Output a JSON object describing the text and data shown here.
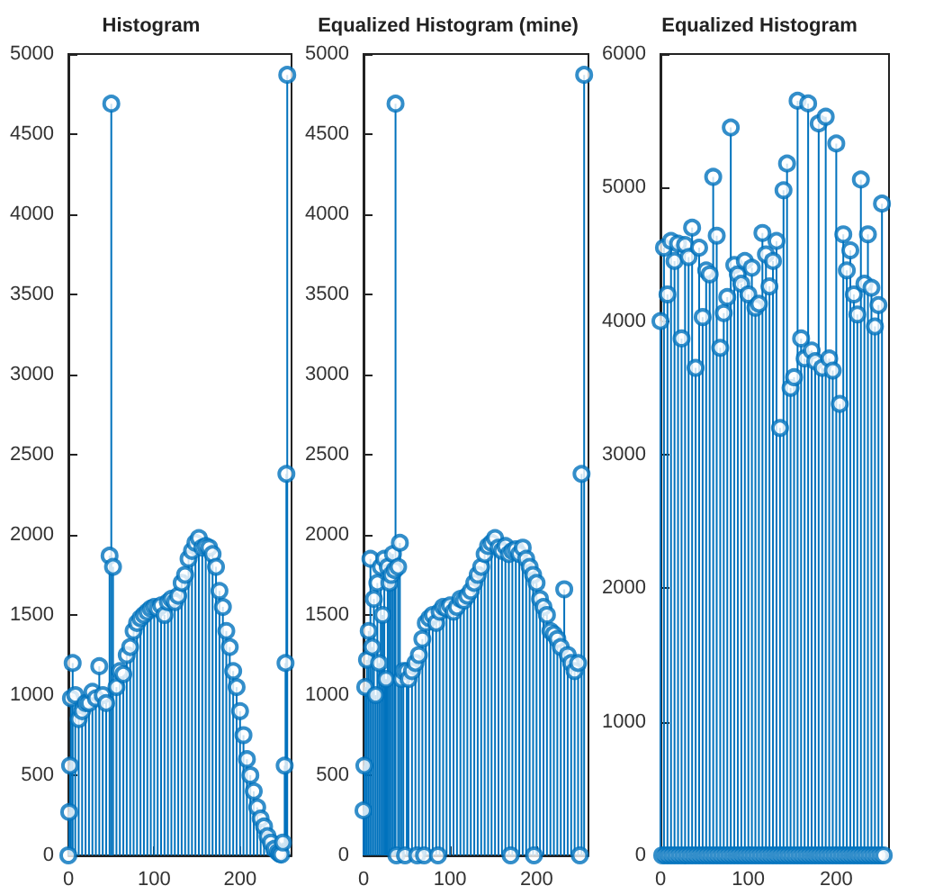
{
  "chart_data": [
    {
      "type": "lollipop",
      "title": "Histogram",
      "color": "#0072bd",
      "marker": "circle",
      "xlim": [
        0,
        260
      ],
      "xticks": [
        0,
        100,
        200
      ],
      "ylim": [
        0,
        5000
      ],
      "yticks": [
        0,
        500,
        1000,
        1500,
        2000,
        2500,
        3000,
        3500,
        4000,
        4500,
        5000
      ],
      "x": [
        0,
        1,
        2,
        3,
        5,
        8,
        12,
        16,
        20,
        24,
        28,
        32,
        36,
        40,
        44,
        48,
        50,
        52,
        56,
        60,
        64,
        68,
        72,
        76,
        80,
        84,
        88,
        92,
        96,
        100,
        104,
        108,
        112,
        116,
        120,
        124,
        128,
        132,
        136,
        140,
        144,
        148,
        152,
        156,
        160,
        164,
        168,
        172,
        176,
        180,
        184,
        188,
        192,
        196,
        200,
        204,
        208,
        212,
        216,
        220,
        224,
        228,
        232,
        236,
        240,
        244,
        246,
        248,
        250,
        252,
        253,
        254,
        255
      ],
      "values": [
        0,
        270,
        560,
        980,
        1200,
        1000,
        850,
        900,
        950,
        950,
        1020,
        980,
        1180,
        1000,
        950,
        1870,
        4690,
        1800,
        1050,
        1150,
        1130,
        1250,
        1300,
        1400,
        1450,
        1480,
        1500,
        1520,
        1540,
        1550,
        1540,
        1560,
        1500,
        1580,
        1600,
        1580,
        1620,
        1700,
        1750,
        1850,
        1900,
        1950,
        1980,
        1920,
        1930,
        1920,
        1880,
        1800,
        1650,
        1550,
        1400,
        1300,
        1150,
        1050,
        900,
        750,
        600,
        500,
        400,
        300,
        230,
        180,
        120,
        80,
        40,
        20,
        10,
        5,
        80,
        560,
        1200,
        2380,
        4870
      ]
    },
    {
      "type": "lollipop",
      "title": "Equalized Histogram (mine)",
      "color": "#0072bd",
      "marker": "circle",
      "xlim": [
        0,
        260
      ],
      "xticks": [
        0,
        100,
        200
      ],
      "ylim": [
        0,
        5000
      ],
      "yticks": [
        0,
        500,
        1000,
        1500,
        2000,
        2500,
        3000,
        3500,
        4000,
        4500,
        5000
      ],
      "x": [
        0,
        1,
        2,
        4,
        6,
        8,
        10,
        12,
        14,
        16,
        18,
        20,
        22,
        24,
        26,
        28,
        30,
        32,
        34,
        36,
        37,
        38,
        40,
        42,
        44,
        46,
        48,
        50,
        52,
        56,
        60,
        62,
        64,
        68,
        70,
        72,
        76,
        80,
        84,
        86,
        88,
        92,
        96,
        100,
        104,
        108,
        112,
        116,
        120,
        124,
        128,
        132,
        136,
        140,
        144,
        148,
        152,
        156,
        160,
        164,
        168,
        170,
        172,
        176,
        180,
        184,
        188,
        192,
        196,
        197,
        200,
        204,
        208,
        212,
        216,
        220,
        224,
        228,
        232,
        236,
        240,
        244,
        248,
        250,
        252,
        255
      ],
      "values": [
        280,
        560,
        1050,
        1220,
        1400,
        1850,
        1300,
        1600,
        1000,
        1700,
        1200,
        1800,
        1500,
        1850,
        1100,
        1800,
        1700,
        1750,
        1880,
        1780,
        4690,
        0,
        1800,
        1950,
        1100,
        1150,
        0,
        1150,
        1100,
        1150,
        1200,
        0,
        1250,
        1350,
        0,
        1450,
        1480,
        1500,
        1450,
        0,
        1520,
        1550,
        1540,
        1560,
        1520,
        1550,
        1600,
        1590,
        1620,
        1650,
        1700,
        1750,
        1800,
        1880,
        1930,
        1950,
        1980,
        1920,
        1900,
        1930,
        1880,
        0,
        1900,
        1910,
        1880,
        1920,
        1850,
        1800,
        1750,
        0,
        1700,
        1600,
        1550,
        1500,
        1400,
        1380,
        1350,
        1300,
        1660,
        1250,
        1200,
        1150,
        1200,
        0,
        2380,
        4870
      ]
    },
    {
      "type": "lollipop",
      "title": "Equalized Histogram",
      "color": "#0072bd",
      "marker": "circle",
      "xlim": [
        0,
        260
      ],
      "xticks": [
        0,
        100,
        200
      ],
      "ylim": [
        0,
        6000
      ],
      "yticks": [
        0,
        1000,
        2000,
        3000,
        4000,
        5000,
        6000
      ],
      "x": [
        0,
        2,
        4,
        6,
        8,
        10,
        12,
        14,
        16,
        18,
        20,
        22,
        24,
        26,
        28,
        30,
        32,
        34,
        36,
        38,
        40,
        42,
        44,
        46,
        48,
        50,
        52,
        54,
        56,
        58,
        60,
        62,
        64,
        66,
        68,
        70,
        72,
        74,
        76,
        78,
        80,
        82,
        84,
        86,
        88,
        90,
        92,
        94,
        96,
        98,
        100,
        102,
        104,
        106,
        108,
        110,
        112,
        114,
        116,
        118,
        120,
        122,
        124,
        126,
        128,
        130,
        132,
        134,
        136,
        138,
        140,
        142,
        144,
        146,
        148,
        150,
        152,
        154,
        156,
        158,
        160,
        162,
        164,
        166,
        168,
        170,
        172,
        174,
        176,
        178,
        180,
        182,
        184,
        186,
        188,
        190,
        192,
        194,
        196,
        198,
        200,
        202,
        204,
        206,
        208,
        210,
        212,
        214,
        216,
        218,
        220,
        222,
        224,
        226,
        228,
        230,
        232,
        234,
        236,
        238,
        240,
        242,
        244,
        246,
        248,
        250,
        252,
        254
      ],
      "values": [
        4000,
        0,
        4550,
        0,
        4200,
        0,
        4600,
        0,
        4450,
        0,
        4580,
        0,
        3870,
        0,
        4570,
        0,
        4480,
        0,
        4700,
        0,
        3650,
        0,
        4550,
        0,
        4030,
        0,
        4380,
        0,
        4350,
        0,
        5080,
        0,
        4640,
        0,
        3800,
        0,
        4060,
        0,
        4180,
        0,
        5450,
        0,
        4420,
        0,
        4350,
        0,
        4280,
        0,
        4450,
        0,
        4200,
        0,
        4400,
        0,
        4100,
        0,
        4130,
        0,
        4660,
        0,
        4500,
        0,
        4260,
        0,
        4450,
        0,
        4600,
        0,
        3200,
        0,
        4980,
        0,
        5180,
        0,
        3500,
        0,
        3580,
        0,
        5650,
        0,
        3870,
        0,
        3720,
        0,
        5630,
        0,
        3780,
        0,
        3700,
        0,
        5480,
        0,
        3650,
        0,
        5530,
        0,
        3720,
        0,
        3630,
        0,
        5330,
        0,
        3380,
        0,
        4650,
        0,
        4380,
        0,
        4530,
        0,
        4200,
        0,
        4050,
        0,
        5060,
        0,
        4280,
        0,
        4650,
        0,
        4250,
        0,
        3960,
        0,
        4120,
        0,
        4880,
        0
      ]
    }
  ]
}
